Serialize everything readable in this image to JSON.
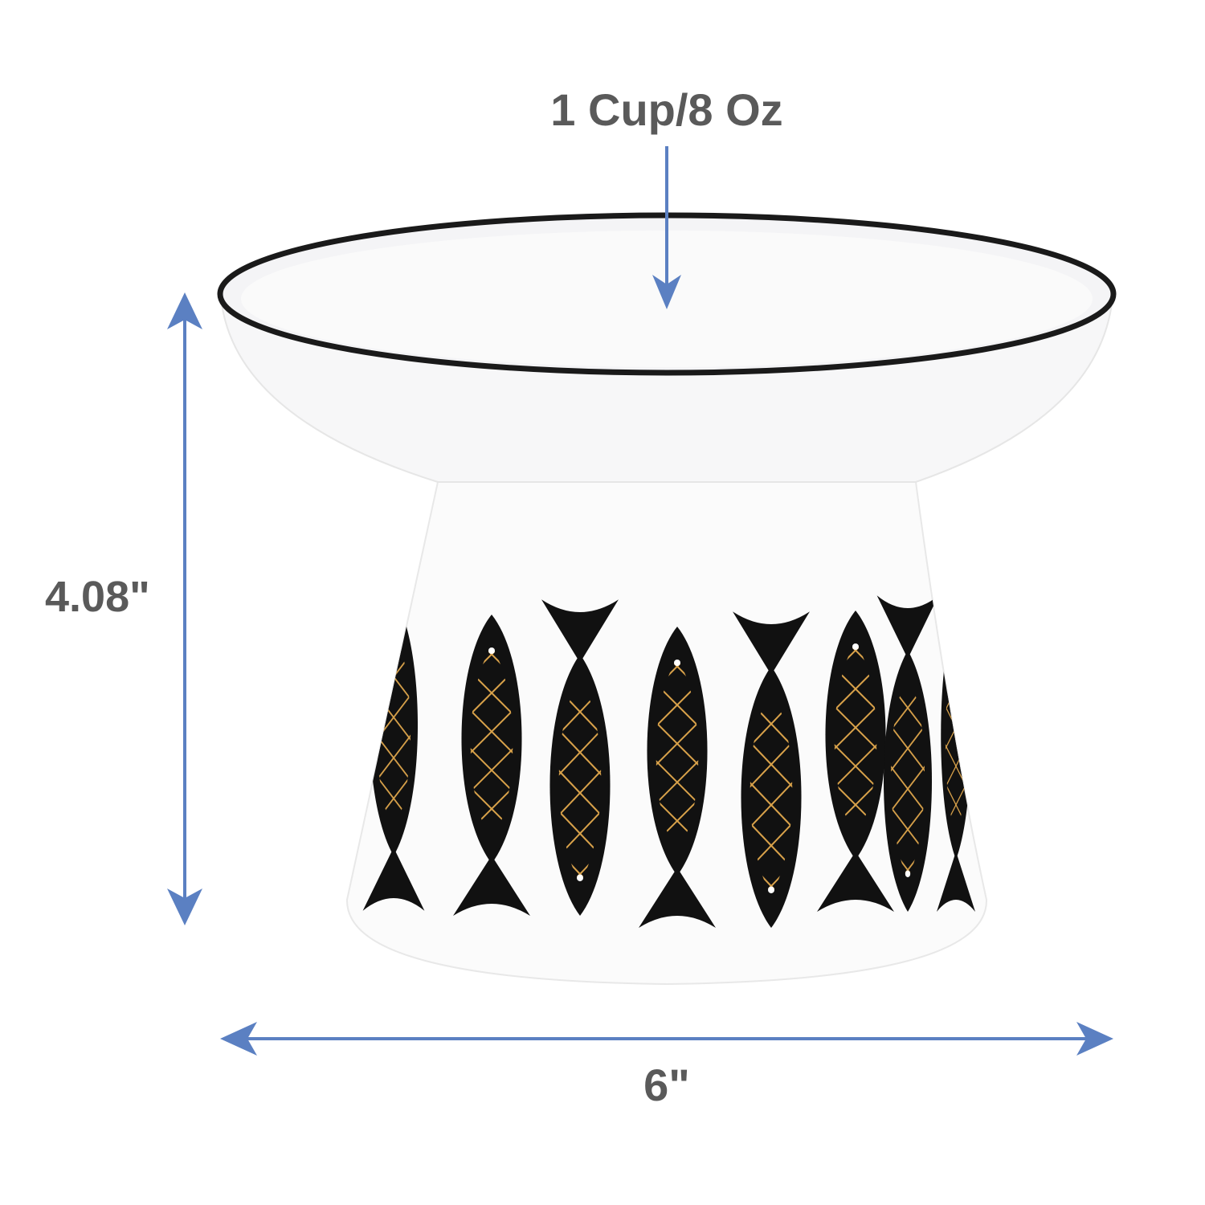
{
  "product": {
    "capacity_label": "1 Cup/8 Oz",
    "height_label": "4.08\"",
    "width_label": "6\""
  },
  "colors": {
    "arrow": "#5b80c2",
    "text": "#5a5a5a",
    "fish": "#111111",
    "fish_pattern": "#d9a24a",
    "rim": "#1a1a1a"
  },
  "icons": [
    "capacity-arrow-icon",
    "height-arrow-icon",
    "width-arrow-icon"
  ]
}
